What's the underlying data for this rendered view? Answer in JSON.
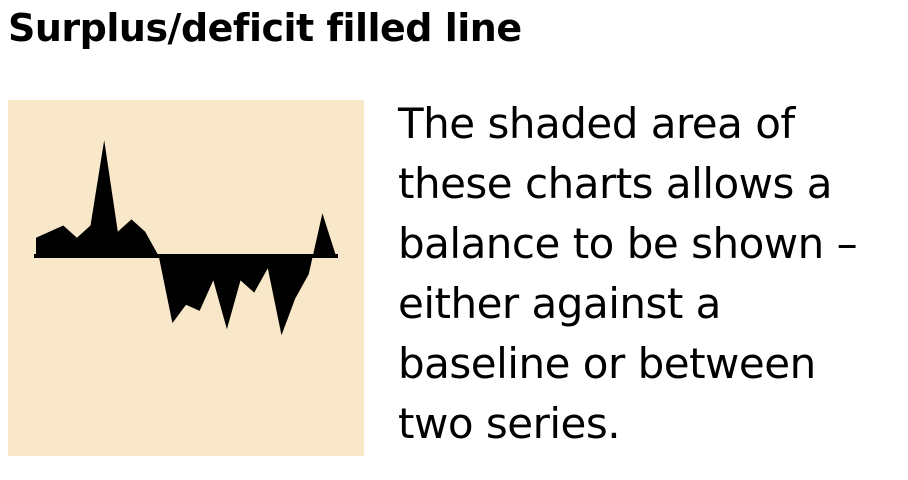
{
  "title": "Surplus/deficit filled line",
  "description_lines": [
    "The shaded area of",
    "these charts allows a",
    "balance to be shown –",
    "either against a",
    "baseline or between",
    "two series."
  ],
  "colors": {
    "thumbnail_background": "#f8e8c9",
    "fill": "#000000",
    "title_text": "#000000",
    "body_text": "#000000"
  },
  "chart_data": {
    "type": "area",
    "title": "",
    "xlabel": "",
    "ylabel": "",
    "baseline": 0,
    "x": [
      0,
      1,
      2,
      3,
      4,
      5,
      6,
      7,
      8,
      9,
      10,
      11,
      12,
      13,
      14,
      15,
      16,
      17,
      18,
      19,
      20,
      21,
      22
    ],
    "values": [
      3,
      4,
      5,
      3,
      5,
      19,
      4,
      6,
      4,
      0,
      -11,
      -8,
      -9,
      -4,
      -12,
      -4,
      -6,
      -2,
      -13,
      -7,
      -3,
      7,
      0
    ],
    "ylim": [
      -14,
      20
    ],
    "grid": false,
    "legend": "none"
  }
}
